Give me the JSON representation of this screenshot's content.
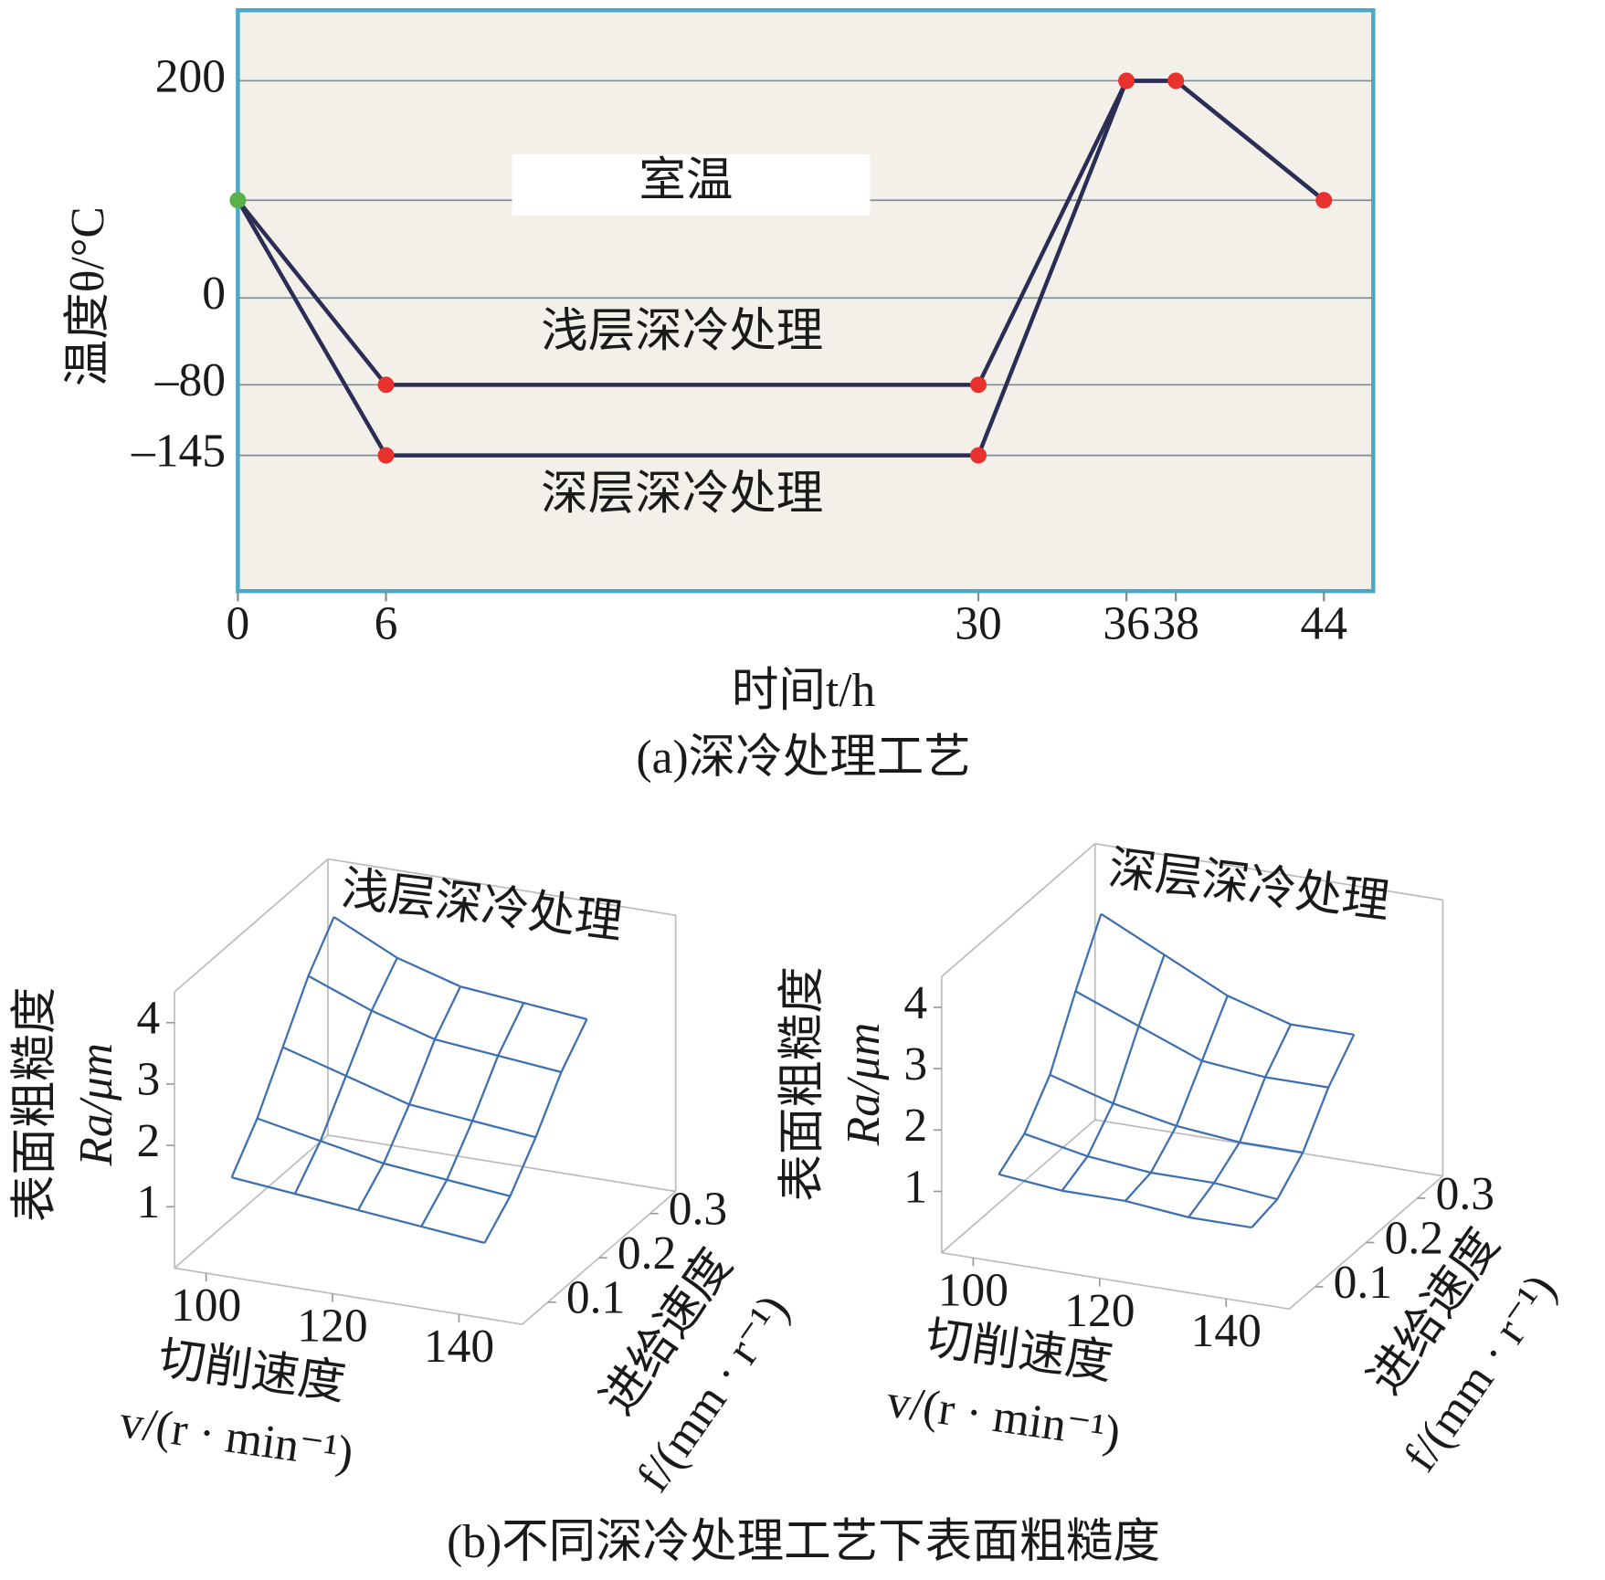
{
  "chart_data": [
    {
      "type": "line",
      "x_label": "时间t/h",
      "y_label": "温度θ/°C",
      "x": [
        0,
        6,
        30,
        36,
        38,
        44
      ],
      "series": [
        {
          "name": "浅层深冷处理",
          "color": "#2b2d55",
          "values": [
            90,
            -80,
            -80,
            200,
            200,
            90
          ]
        },
        {
          "name": "深层深冷处理",
          "color": "#2b2d55",
          "values": [
            90,
            -145,
            -145,
            200,
            200,
            90
          ]
        }
      ],
      "reference_line": {
        "value": 90,
        "label": "室温"
      },
      "xlim": [
        0,
        46
      ],
      "ylim": [
        -270,
        265
      ],
      "xticks": [
        0,
        6,
        30,
        36,
        38,
        44
      ],
      "yticks": [
        200,
        0,
        {
          "value": -80,
          "label": "–80"
        },
        {
          "value": -145,
          "label": "–145"
        }
      ],
      "grid": true,
      "marker_color": "#e8322d",
      "start_marker_color": "#5bb04a",
      "frame_color": "#4aa8c8",
      "background": "#f3f0ea"
    },
    {
      "type": "surface",
      "title": "浅层深冷处理",
      "x_label": "切削速度",
      "x_unit_label": "v/(r · min⁻¹)",
      "y_label": "进给速度",
      "y_unit_label": "f/(mm · r⁻¹)",
      "z_label": "表面粗糙度",
      "z_unit_label": "Ra/μm",
      "x": [
        100,
        110,
        120,
        130,
        140
      ],
      "y": [
        0.1,
        0.15,
        0.2,
        0.25,
        0.3
      ],
      "z": [
        [
          1.2,
          1.1,
          1.0,
          0.9,
          0.8
        ],
        [
          1.8,
          1.6,
          1.4,
          1.3,
          1.2
        ],
        [
          2.6,
          2.3,
          2.0,
          1.9,
          1.8
        ],
        [
          3.4,
          3.0,
          2.7,
          2.6,
          2.5
        ],
        [
          4.0,
          3.5,
          3.2,
          3.1,
          3.0
        ]
      ],
      "xlim": [
        95,
        150
      ],
      "ylim": [
        0.05,
        0.35
      ],
      "zlim": [
        0,
        4.5
      ],
      "xticks": [
        100,
        120,
        140
      ],
      "yticks": [
        0.1,
        0.2,
        0.3
      ],
      "zticks": [
        1,
        2,
        3,
        4
      ],
      "color": "#3c6fb0"
    },
    {
      "type": "surface",
      "title": "深层深冷处理",
      "x_label": "切削速度",
      "x_unit_label": "v/(r · min⁻¹)",
      "y_label": "进给速度",
      "y_unit_label": "f/(mm · r⁻¹)",
      "z_label": "表面粗糙度",
      "z_unit_label": "Ra/μm",
      "x": [
        100,
        110,
        120,
        130,
        140
      ],
      "y": [
        0.1,
        0.15,
        0.2,
        0.25,
        0.3
      ],
      "z": [
        [
          1.0,
          0.9,
          0.9,
          0.8,
          0.8
        ],
        [
          1.3,
          1.1,
          1.0,
          1.0,
          0.9
        ],
        [
          1.9,
          1.6,
          1.4,
          1.3,
          1.3
        ],
        [
          2.9,
          2.5,
          2.1,
          2.0,
          2.0
        ],
        [
          3.8,
          3.3,
          2.8,
          2.5,
          2.5
        ]
      ],
      "xlim": [
        95,
        150
      ],
      "ylim": [
        0.05,
        0.35
      ],
      "zlim": [
        0,
        4.5
      ],
      "xticks": [
        100,
        120,
        140
      ],
      "yticks": [
        0.1,
        0.2,
        0.3
      ],
      "zticks": [
        1,
        2,
        3,
        4
      ],
      "color": "#3c6fb0"
    }
  ],
  "captions": [
    "(a)深冷处理工艺",
    "(b)不同深冷处理工艺下表面粗糙度"
  ]
}
